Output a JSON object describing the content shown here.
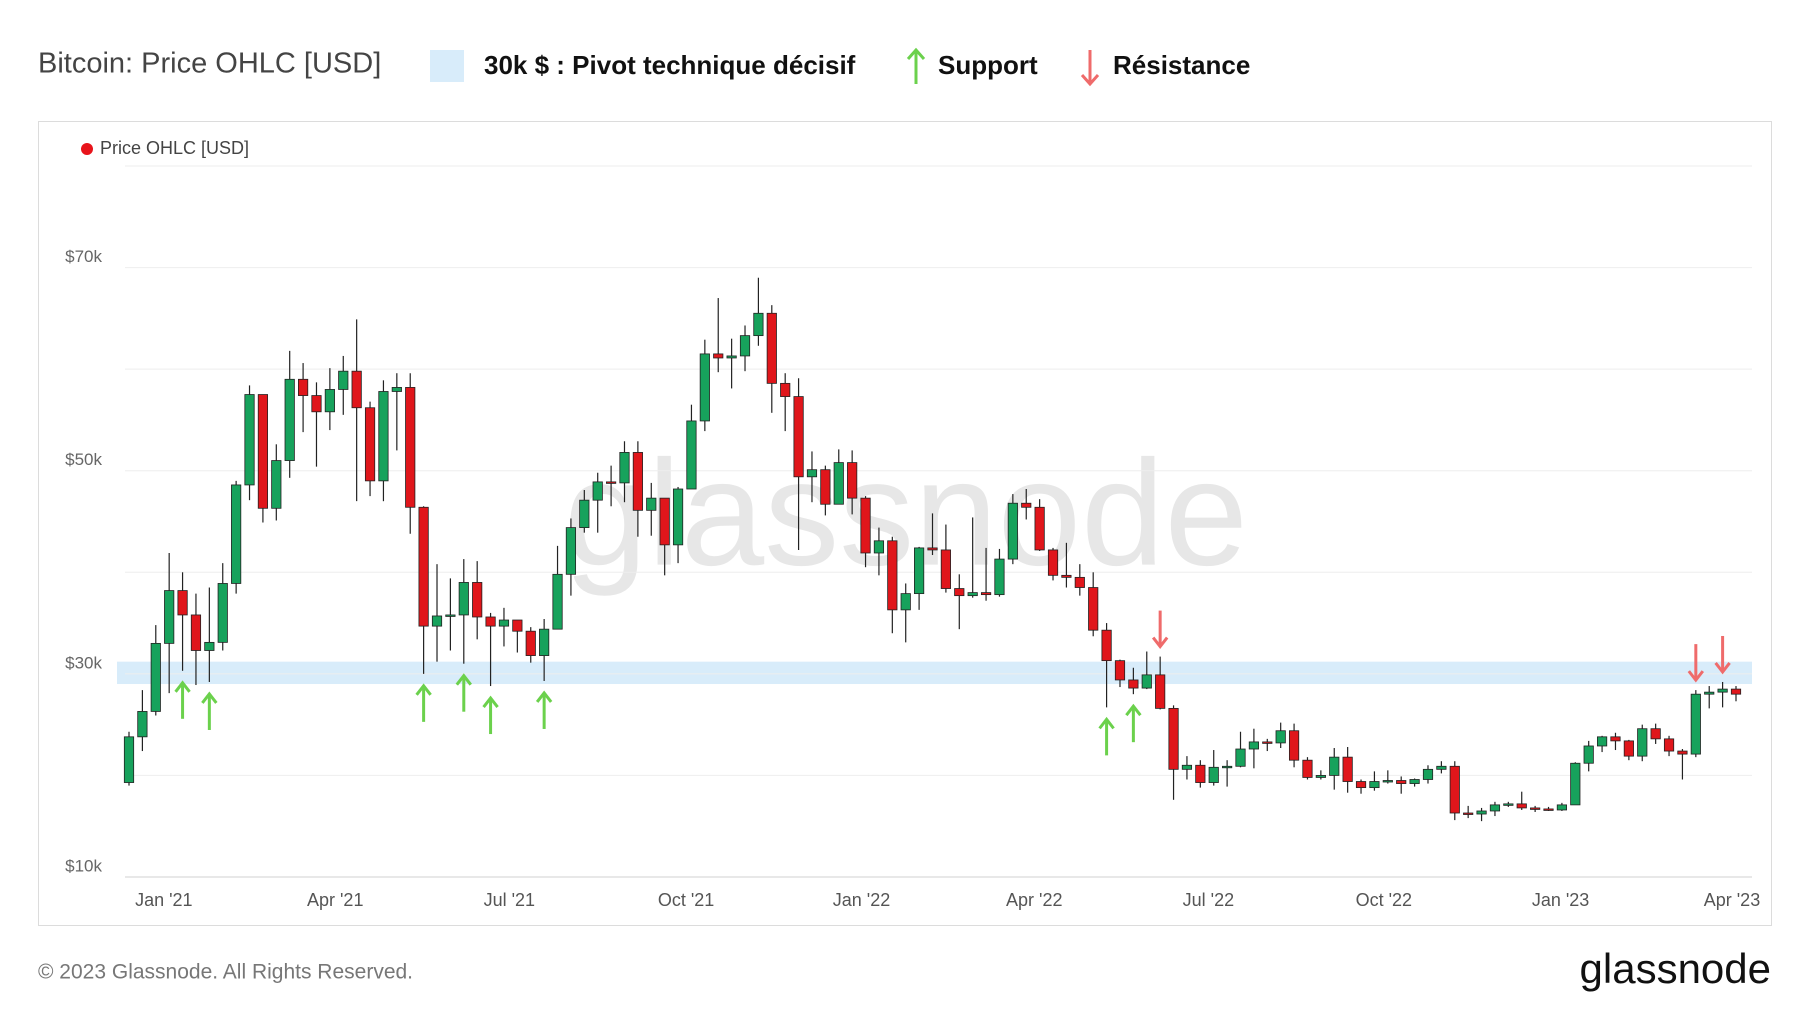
{
  "chart_data": {
    "type": "candlestick",
    "title": "Bitcoin: Price OHLC [USD]",
    "legend_items": [
      {
        "label": "30k $ : Pivot technique décisif",
        "range": [
          29000,
          31200
        ],
        "color": "#d8ecfa"
      },
      {
        "label": "Support",
        "color": "#6bd14c"
      },
      {
        "label": "Résistance",
        "color": "#ef6b6b"
      }
    ],
    "watermark": "glassnode",
    "footer": "© 2023 Glassnode. All Rights Reserved.",
    "logo": "glassnode",
    "up_color": "#17a25c",
    "down_color": "#e0161b",
    "ylim": [
      10000,
      80000
    ],
    "yticks": [
      {
        "value": 10000,
        "label": "$10k"
      },
      {
        "value": 30000,
        "label": "$30k"
      },
      {
        "value": 50000,
        "label": "$50k"
      },
      {
        "value": 70000,
        "label": "$70k"
      }
    ],
    "minor_yticks": [
      20000,
      40000,
      60000,
      80000
    ],
    "grid": true,
    "xticks": [
      {
        "value": 2.6,
        "label": "Jan '21"
      },
      {
        "value": 15.4,
        "label": "Apr '21"
      },
      {
        "value": 28.4,
        "label": "Jul '21"
      },
      {
        "value": 41.6,
        "label": "Oct '21"
      },
      {
        "value": 54.7,
        "label": "Jan '22"
      },
      {
        "value": 67.6,
        "label": "Apr '22"
      },
      {
        "value": 80.6,
        "label": "Jul '22"
      },
      {
        "value": 93.7,
        "label": "Oct '22"
      },
      {
        "value": 106.9,
        "label": "Jan '23"
      },
      {
        "value": 119.7,
        "label": "Apr '23"
      }
    ],
    "series": [
      {
        "name": "Price OHLC [USD]",
        "color": "#e8141b",
        "open": [
          19300,
          23800,
          26300,
          33000,
          38200,
          35800,
          32300,
          33100,
          38900,
          48600,
          57500,
          46300,
          51000,
          59000,
          57400,
          55800,
          58000,
          59800,
          56200,
          49000,
          57800,
          58200,
          46400,
          34700,
          35700,
          35800,
          39000,
          35600,
          34700,
          35300,
          34200,
          31800,
          34400,
          39800,
          44400,
          47100,
          48900,
          48800,
          51800,
          46100,
          47300,
          42700,
          48200,
          54900,
          61500,
          61100,
          61300,
          63300,
          65500,
          58600,
          57300,
          49400,
          50100,
          46700,
          50800,
          47300,
          41900,
          43100,
          36300,
          37900,
          42400,
          42200,
          38400,
          37700,
          38000,
          37800,
          41300,
          46800,
          46400,
          42200,
          39700,
          39500,
          38500,
          34300,
          31300,
          29400,
          28600,
          29900,
          26600,
          20600,
          21000,
          19300,
          20800,
          20900,
          22600,
          23300,
          23200,
          24400,
          21500,
          19800,
          20000,
          21800,
          19400,
          18800,
          19400,
          19500,
          19200,
          19600,
          20600,
          20900,
          16300,
          16200,
          16500,
          17100,
          17200,
          16800,
          16700,
          16600,
          17100,
          21200,
          22900,
          23800,
          23400,
          21900,
          24600,
          23600,
          22400,
          22100,
          28000,
          28200,
          28500
        ],
        "high": [
          24300,
          28400,
          34800,
          41900,
          40000,
          37900,
          38500,
          40900,
          49000,
          58400,
          57500,
          52600,
          61800,
          60600,
          58700,
          60100,
          61300,
          64900,
          56800,
          58900,
          59600,
          59600,
          46500,
          40800,
          39400,
          41300,
          41100,
          36000,
          36500,
          35300,
          34600,
          35400,
          42600,
          45300,
          48100,
          49800,
          50500,
          52900,
          52900,
          48800,
          47300,
          48400,
          56500,
          62900,
          67000,
          63000,
          64300,
          69000,
          66300,
          59600,
          59100,
          51900,
          50500,
          52100,
          52000,
          47500,
          44400,
          43500,
          38900,
          42500,
          45800,
          44700,
          39800,
          45400,
          42400,
          42300,
          47700,
          48200,
          47200,
          42400,
          42900,
          40800,
          40000,
          35000,
          31400,
          30600,
          32200,
          31700,
          26900,
          21900,
          21500,
          22500,
          21500,
          24300,
          24600,
          23600,
          25200,
          25100,
          21800,
          20500,
          22700,
          22800,
          19600,
          20400,
          20500,
          19900,
          19700,
          21000,
          21400,
          21400,
          17000,
          16800,
          17400,
          17400,
          18400,
          17000,
          16900,
          17300,
          21300,
          23400,
          23900,
          24200,
          23500,
          25000,
          25100,
          23900,
          22600,
          28400,
          28800,
          29200,
          28800
        ],
        "low": [
          19000,
          22400,
          25900,
          28100,
          30300,
          28900,
          29200,
          32300,
          37900,
          47100,
          44900,
          45100,
          49300,
          53800,
          50400,
          54000,
          55500,
          47000,
          47500,
          47000,
          52000,
          43800,
          30000,
          31200,
          32300,
          31000,
          33400,
          28800,
          32700,
          32100,
          31100,
          29300,
          34400,
          37700,
          43900,
          43900,
          46500,
          46900,
          43500,
          43600,
          39700,
          40900,
          48200,
          53900,
          59700,
          58100,
          59800,
          62300,
          55700,
          53900,
          42200,
          46900,
          45600,
          46700,
          45700,
          40500,
          39700,
          34000,
          33100,
          36300,
          41700,
          38000,
          34400,
          37500,
          37200,
          37600,
          40800,
          45200,
          42100,
          39200,
          38500,
          37700,
          33700,
          26700,
          28700,
          28000,
          28500,
          26500,
          17600,
          19600,
          18800,
          19000,
          18900,
          20800,
          20700,
          22400,
          22700,
          20800,
          19600,
          19600,
          18600,
          18300,
          18200,
          18500,
          19200,
          18200,
          18900,
          19200,
          20200,
          15600,
          15800,
          15500,
          16000,
          16900,
          16600,
          16400,
          16500,
          16500,
          17100,
          20400,
          22300,
          22500,
          21500,
          21400,
          23100,
          21900,
          19600,
          21800,
          26600,
          26700,
          27300
        ],
        "close": [
          23800,
          26300,
          33000,
          38200,
          35800,
          32300,
          33100,
          38900,
          48600,
          57500,
          46300,
          51000,
          59000,
          57400,
          55800,
          58000,
          59800,
          56200,
          49000,
          57800,
          58200,
          46400,
          34700,
          35700,
          35800,
          39000,
          35600,
          34700,
          35300,
          34200,
          31800,
          34400,
          39800,
          44400,
          47100,
          48900,
          48800,
          51800,
          46100,
          47300,
          42700,
          48200,
          54900,
          61500,
          61100,
          61300,
          63300,
          65500,
          58600,
          57300,
          49400,
          50100,
          46700,
          50800,
          47300,
          41900,
          43100,
          36300,
          37900,
          42400,
          42200,
          38400,
          37700,
          38000,
          37800,
          41300,
          46800,
          46400,
          42200,
          39700,
          39500,
          38500,
          34300,
          31300,
          29400,
          28600,
          29900,
          26600,
          20600,
          21000,
          19300,
          20800,
          20900,
          22600,
          23300,
          23200,
          24400,
          21500,
          19800,
          20000,
          21800,
          19400,
          18800,
          19400,
          19500,
          19200,
          19600,
          20600,
          20900,
          16300,
          16200,
          16500,
          17100,
          17200,
          16800,
          16700,
          16600,
          17100,
          21200,
          22900,
          23800,
          23400,
          21900,
          24600,
          23600,
          22400,
          22100,
          28000,
          28200,
          28500,
          28000
        ]
      }
    ]
  }
}
